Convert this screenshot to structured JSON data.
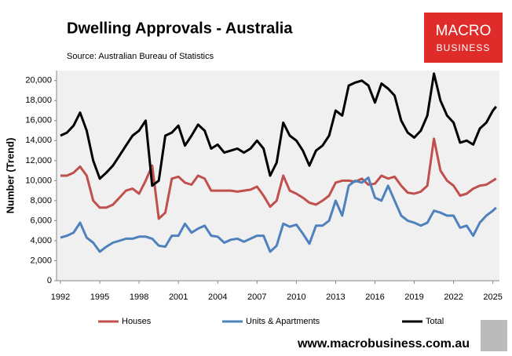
{
  "chart_data": {
    "type": "line",
    "title": "Dwelling Approvals - Australia",
    "subtitle": "Source: Australian Bureau of Statistics",
    "ylabel": "Number (Trend)",
    "x": [
      1992,
      1992.5,
      1993,
      1993.5,
      1994,
      1994.5,
      1995,
      1995.5,
      1996,
      1996.5,
      1997,
      1997.5,
      1998,
      1998.5,
      1999,
      1999.5,
      2000,
      2000.5,
      2001,
      2001.5,
      2002,
      2002.5,
      2003,
      2003.5,
      2004,
      2004.5,
      2005,
      2005.5,
      2006,
      2006.5,
      2007,
      2007.5,
      2008,
      2008.5,
      2009,
      2009.5,
      2010,
      2010.5,
      2011,
      2011.5,
      2012,
      2012.5,
      2013,
      2013.5,
      2014,
      2014.5,
      2015,
      2015.5,
      2016,
      2016.5,
      2017,
      2017.5,
      2018,
      2018.5,
      2019,
      2019.5,
      2020,
      2020.5,
      2021,
      2021.5,
      2022,
      2022.5,
      2023,
      2023.5,
      2024,
      2024.5,
      2025,
      2025.25
    ],
    "series": [
      {
        "name": "Houses",
        "color": "#c0504d",
        "values": [
          10500,
          10500,
          10800,
          11400,
          10500,
          8000,
          7300,
          7300,
          7600,
          8300,
          9000,
          9200,
          8700,
          10000,
          11500,
          6200,
          6800,
          10200,
          10400,
          9800,
          9600,
          10500,
          10200,
          9000,
          9000,
          9000,
          9000,
          8900,
          9000,
          9100,
          9400,
          8500,
          7400,
          8000,
          10500,
          9000,
          8700,
          8300,
          7800,
          7600,
          8000,
          8500,
          9800,
          10000,
          10000,
          9900,
          10200,
          9600,
          9700,
          10500,
          10200,
          10400,
          9500,
          8800,
          8700,
          8900,
          9500,
          14200,
          11000,
          10000,
          9500,
          8500,
          8700,
          9200,
          9500,
          9600,
          10000,
          10200
        ]
      },
      {
        "name": "Units & Apartments",
        "color": "#4f81bd",
        "values": [
          4300,
          4500,
          4800,
          5800,
          4300,
          3800,
          2900,
          3400,
          3800,
          4000,
          4200,
          4200,
          4400,
          4400,
          4200,
          3500,
          3400,
          4500,
          4500,
          5700,
          4800,
          5200,
          5500,
          4500,
          4400,
          3800,
          4100,
          4200,
          3900,
          4200,
          4500,
          4500,
          2900,
          3500,
          5700,
          5400,
          5600,
          4700,
          3700,
          5500,
          5500,
          6000,
          8000,
          6500,
          9500,
          10000,
          9800,
          10300,
          8300,
          8000,
          9500,
          8000,
          6500,
          6000,
          5800,
          5500,
          5800,
          7000,
          6800,
          6500,
          6500,
          5300,
          5500,
          4500,
          5800,
          6500,
          7000,
          7300
        ]
      },
      {
        "name": "Total",
        "color": "#000000",
        "values": [
          14500,
          14800,
          15500,
          16800,
          15000,
          12000,
          10200,
          10800,
          11500,
          12500,
          13500,
          14500,
          15000,
          16000,
          9500,
          10000,
          14500,
          14800,
          15500,
          13500,
          14500,
          15600,
          15000,
          13200,
          13600,
          12800,
          13000,
          13200,
          12800,
          13200,
          14000,
          13200,
          10500,
          11800,
          15800,
          14500,
          14000,
          13000,
          11500,
          13000,
          13500,
          14500,
          17000,
          16500,
          19500,
          19800,
          20000,
          19500,
          17800,
          19700,
          19200,
          18500,
          16000,
          14800,
          14300,
          15000,
          16500,
          20700,
          18000,
          16500,
          15800,
          13800,
          14000,
          13600,
          15200,
          15800,
          17000,
          17400
        ]
      }
    ],
    "xlim": [
      1991.7,
      2025.5
    ],
    "xticks": [
      1992,
      1995,
      1998,
      2001,
      2004,
      2007,
      2010,
      2013,
      2016,
      2019,
      2022,
      2025
    ],
    "ylim": [
      0,
      21000
    ],
    "yticks": [
      0,
      {
        "value": 2000,
        "label": "2,000"
      },
      {
        "value": 4000,
        "label": "4,000"
      },
      {
        "value": 6000,
        "label": "6,000"
      },
      {
        "value": 8000,
        "label": "8,000"
      },
      {
        "value": 10000,
        "label": "10,000"
      },
      {
        "value": 12000,
        "label": "12,000"
      },
      {
        "value": 14000,
        "label": "14,000"
      },
      {
        "value": 16000,
        "label": "16,000"
      },
      {
        "value": 18000,
        "label": "18,000"
      },
      {
        "value": 20000,
        "label": "20,000"
      }
    ],
    "grid": false,
    "legend": "bottom"
  },
  "logo": [
    "MACRO",
    "BUSINESS"
  ],
  "footer": "www.macrobusiness.com.au"
}
